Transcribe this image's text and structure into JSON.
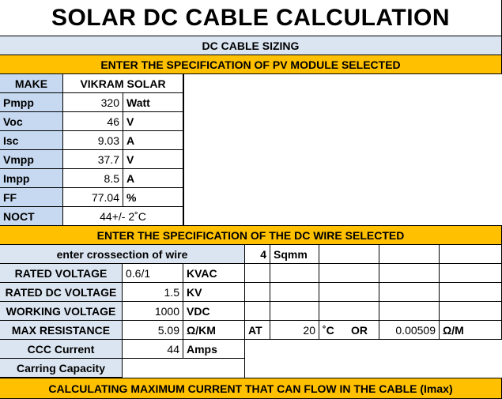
{
  "title": "SOLAR DC CABLE CALCULATION",
  "subtitle": "DC CABLE SIZING",
  "module_header": "ENTER THE SPECIFICATION OF PV MODULE SELECTED",
  "module": {
    "make_label": "MAKE",
    "make_value": "VIKRAM SOLAR",
    "rows": [
      {
        "label": "Pmpp",
        "value": "320",
        "unit": "Watt"
      },
      {
        "label": "Voc",
        "value": "46",
        "unit": "V"
      },
      {
        "label": "Isc",
        "value": "9.03",
        "unit": "A"
      },
      {
        "label": "Vmpp",
        "value": "37.7",
        "unit": "V"
      },
      {
        "label": "Impp",
        "value": "8.5",
        "unit": "A"
      },
      {
        "label": "FF",
        "value": "77.04",
        "unit": "%"
      },
      {
        "label": "NOCT",
        "value": "44+/- 2˚C",
        "unit": ""
      }
    ]
  },
  "wire_header": "ENTER THE SPECIFICATION OF THE DC WIRE SELECTED",
  "wire": {
    "crossection_label": "enter crossection of wire",
    "crossection_value": "4",
    "crossection_unit": "Sqmm",
    "rated_voltage_label": "RATED VOLTAGE",
    "rated_voltage_value": "0.6/1",
    "rated_voltage_unit": "KVAC",
    "rated_dc_label": "RATED DC VOLTAGE",
    "rated_dc_value": "1.5",
    "rated_dc_unit": "KV",
    "working_label": "WORKING VOLTAGE",
    "working_value": "1000",
    "working_unit": "VDC",
    "max_res_label": "MAX RESISTANCE",
    "max_res_value": "5.09",
    "max_res_unit": "Ω/KM",
    "at_label": "AT",
    "temp_value": "20",
    "temp_unit": "˚C",
    "or_label": "OR",
    "res_m_value": "0.00509",
    "res_m_unit": "Ω/M",
    "ccc_label": "CCC Current",
    "ccc_value": "44",
    "ccc_unit": "Amps",
    "carrying_label": "Carring Capacity"
  },
  "imax_header": "CALCULATING MAXIMUM CURRENT THAT CAN FLOW IN THE CABLE (Imax)"
}
